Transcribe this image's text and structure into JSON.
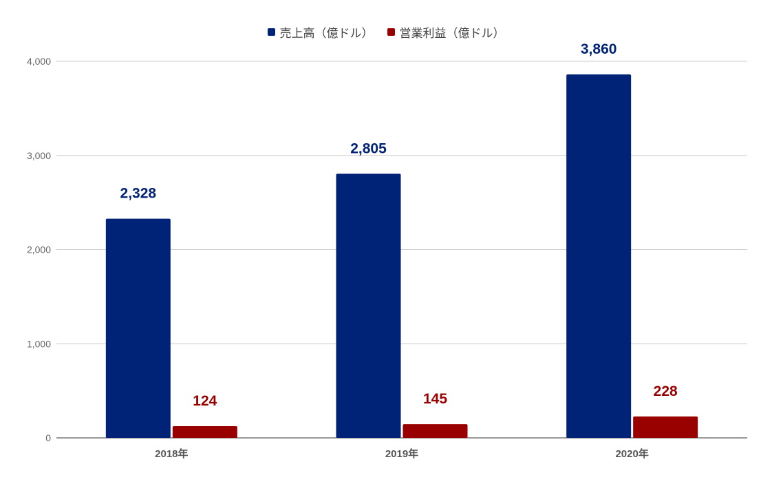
{
  "chart_data": {
    "type": "bar",
    "categories": [
      "2018年",
      "2019年",
      "2020年"
    ],
    "series": [
      {
        "name": "売上高（億ドル）",
        "values": [
          2328,
          2805,
          3860
        ],
        "color": "#002277",
        "labels": [
          "2,328",
          "2,805",
          "3,860"
        ]
      },
      {
        "name": "営業利益（億ドル）",
        "values": [
          124,
          145,
          228
        ],
        "color": "#990000",
        "labels": [
          "124",
          "145",
          "228"
        ]
      }
    ],
    "yticks": [
      0,
      1000,
      2000,
      3000,
      4000
    ],
    "ytick_labels": [
      "0",
      "1,000",
      "2,000",
      "3,000",
      "4,000"
    ],
    "ylim": [
      0,
      4000
    ],
    "grid": true,
    "legend_position": "top-center"
  }
}
